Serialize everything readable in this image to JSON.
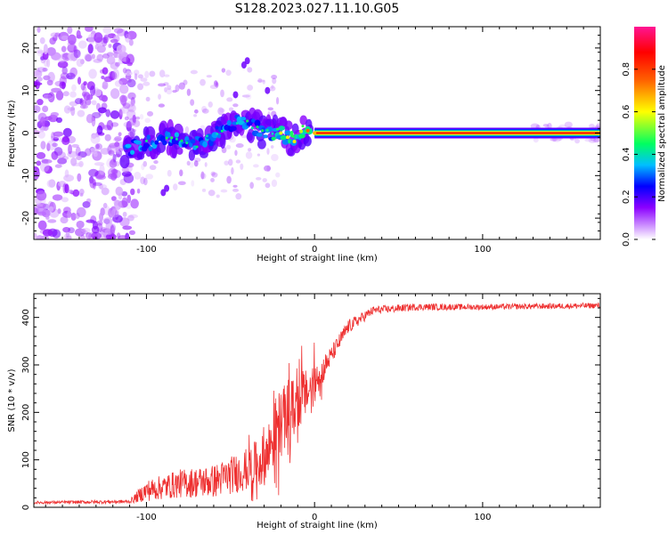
{
  "figure_title": "S128.2023.027.11.10.G05",
  "chart_data": [
    {
      "type": "heatmap",
      "title": "S128.2023.027.11.10.G05",
      "xlabel": "Height of straight line (km)",
      "ylabel": "Frequency (Hz)",
      "xlim": [
        -167,
        170
      ],
      "ylim": [
        -25,
        25
      ],
      "x_ticks": [
        -100,
        0,
        100
      ],
      "x_tick_labels": [
        "-100",
        "0",
        "100"
      ],
      "y_ticks": [
        -20,
        -10,
        0,
        10,
        20
      ],
      "y_tick_labels": [
        "-20",
        "-10",
        "0",
        "10",
        "20"
      ],
      "colorbar": {
        "label": "Normalized spectral amplitude",
        "range": [
          0,
          1
        ],
        "ticks": [
          0.0,
          0.2,
          0.4,
          0.6,
          0.8
        ],
        "tick_labels": [
          "0.0",
          "0.2",
          "0.4",
          "0.6",
          "0.8"
        ],
        "stops": [
          {
            "v": 0.0,
            "color": "#ffffff"
          },
          {
            "v": 0.15,
            "color": "#8b00ff"
          },
          {
            "v": 0.25,
            "color": "#0000ff"
          },
          {
            "v": 0.35,
            "color": "#00bfff"
          },
          {
            "v": 0.45,
            "color": "#00ff60"
          },
          {
            "v": 0.6,
            "color": "#ffff00"
          },
          {
            "v": 0.75,
            "color": "#ff6000"
          },
          {
            "v": 0.88,
            "color": "#ff0000"
          },
          {
            "v": 1.0,
            "color": "#ff1493"
          }
        ]
      },
      "ridge": [
        {
          "x": -113,
          "y": -4
        },
        {
          "x": -105,
          "y": -3
        },
        {
          "x": -95,
          "y": -2
        },
        {
          "x": -85,
          "y": -1
        },
        {
          "x": -75,
          "y": -3
        },
        {
          "x": -65,
          "y": -2
        },
        {
          "x": -55,
          "y": 1
        },
        {
          "x": -45,
          "y": 3
        },
        {
          "x": -38,
          "y": 2
        },
        {
          "x": -30,
          "y": 0
        },
        {
          "x": -20,
          "y": 0
        },
        {
          "x": -12,
          "y": -2
        },
        {
          "x": -7,
          "y": 1
        },
        {
          "x": 0,
          "y": 0
        },
        {
          "x": 170,
          "y": 0
        }
      ],
      "carrier_line": {
        "x_start": 0,
        "x_end": 170,
        "frequency": 0
      }
    },
    {
      "type": "line",
      "title": "",
      "xlabel": "Height of straight line (km)",
      "ylabel": "SNR (10 * v/v)",
      "xlim": [
        -167,
        170
      ],
      "ylim": [
        0,
        450
      ],
      "x_ticks": [
        -100,
        0,
        100
      ],
      "x_tick_labels": [
        "-100",
        "0",
        "100"
      ],
      "y_ticks": [
        0,
        100,
        200,
        300,
        400
      ],
      "y_tick_labels": [
        "0",
        "100",
        "200",
        "300",
        "400"
      ],
      "series": [
        {
          "name": "SNR",
          "color": "#ee3030",
          "envelope": [
            {
              "x": -167,
              "mean": 10,
              "spread": 6
            },
            {
              "x": -110,
              "mean": 12,
              "spread": 8
            },
            {
              "x": -100,
              "mean": 35,
              "spread": 45
            },
            {
              "x": -80,
              "mean": 50,
              "spread": 60
            },
            {
              "x": -60,
              "mean": 55,
              "spread": 70
            },
            {
              "x": -40,
              "mean": 80,
              "spread": 90
            },
            {
              "x": -30,
              "mean": 100,
              "spread": 110
            },
            {
              "x": -22,
              "mean": 170,
              "spread": 150
            },
            {
              "x": -10,
              "mean": 220,
              "spread": 120
            },
            {
              "x": 0,
              "mean": 260,
              "spread": 80
            },
            {
              "x": 10,
              "mean": 320,
              "spread": 40
            },
            {
              "x": 20,
              "mean": 380,
              "spread": 30
            },
            {
              "x": 35,
              "mean": 415,
              "spread": 18
            },
            {
              "x": 60,
              "mean": 422,
              "spread": 15
            },
            {
              "x": 100,
              "mean": 422,
              "spread": 12
            },
            {
              "x": 170,
              "mean": 425,
              "spread": 12
            }
          ]
        }
      ]
    }
  ]
}
